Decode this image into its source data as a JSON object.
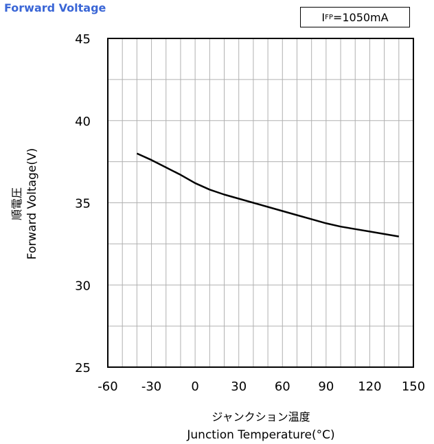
{
  "chart_data": {
    "type": "line",
    "title": "Forward Voltage",
    "condition": {
      "symbol": "I",
      "subscript": "FP",
      "value": "=1050mA"
    },
    "xlabel_jp": "ジャンクション温度",
    "xlabel": "Junction Temperature(°C)",
    "ylabel_jp": "順電圧",
    "ylabel": "Forward Voltage(V)",
    "xlim": [
      -60,
      150
    ],
    "ylim": [
      25,
      45
    ],
    "xticks": [
      -60,
      -30,
      0,
      30,
      60,
      90,
      120,
      150
    ],
    "yticks": [
      25,
      30,
      35,
      40,
      45
    ],
    "grid": true,
    "colors": {
      "title": "#3a66d6",
      "line": "#000000",
      "grid": "#b0b0b0"
    },
    "series": [
      {
        "x": [
          -40,
          -30,
          -20,
          -10,
          0,
          10,
          20,
          30,
          40,
          50,
          60,
          70,
          80,
          90,
          100,
          110,
          120,
          130,
          140
        ],
        "values": [
          38.0,
          37.6,
          37.15,
          36.7,
          36.2,
          35.8,
          35.5,
          35.25,
          35.0,
          34.75,
          34.5,
          34.25,
          34.0,
          33.75,
          33.55,
          33.4,
          33.25,
          33.1,
          32.95
        ]
      }
    ]
  }
}
